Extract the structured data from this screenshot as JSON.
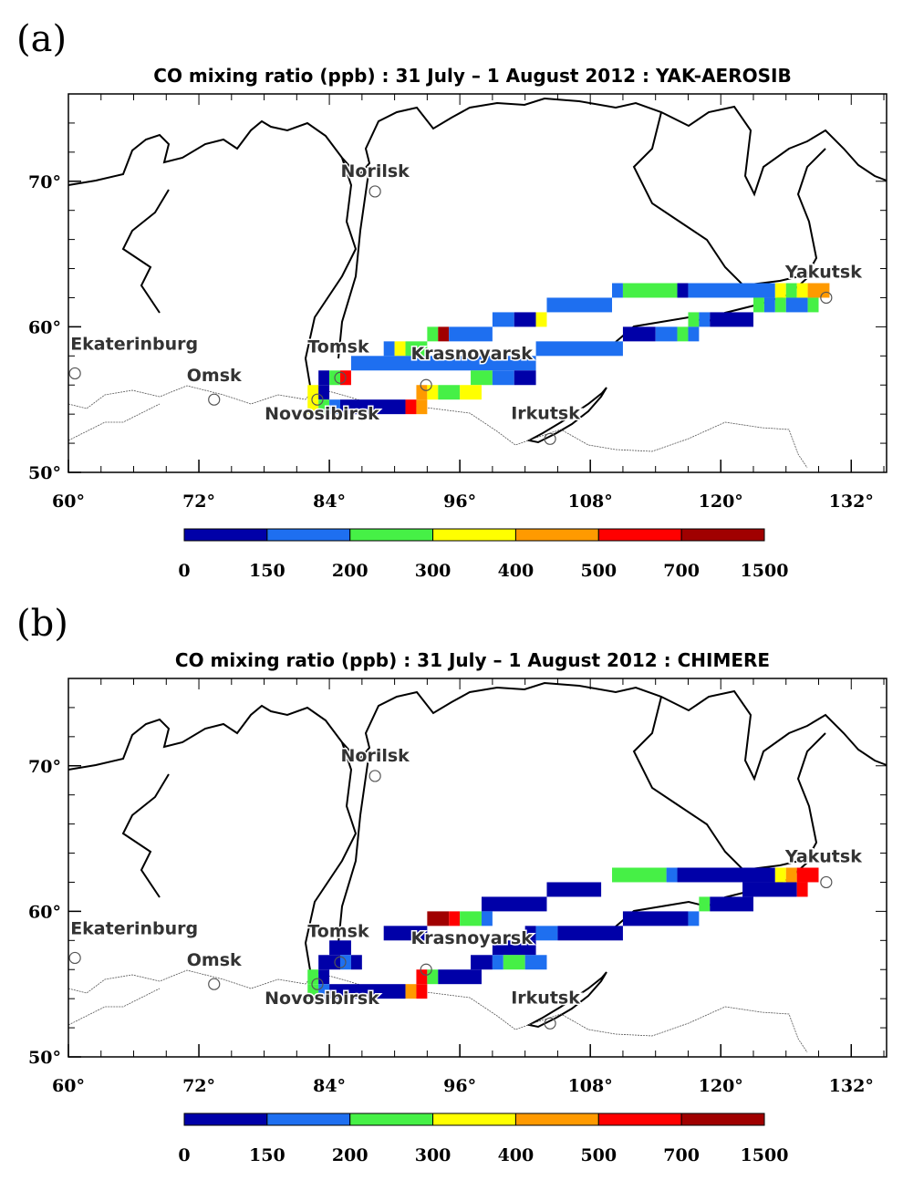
{
  "panels": [
    {
      "label": "(a)",
      "title": "CO mixing ratio (ppb) : 31 July – 1 August 2012 : YAK-AEROSIB",
      "xlim": [
        60,
        135.25
      ],
      "ylim": [
        50,
        76
      ],
      "xticks": [
        {
          "value": 60,
          "label": "60°"
        },
        {
          "value": 72,
          "label": "72°"
        },
        {
          "value": 84,
          "label": "84°"
        },
        {
          "value": 96,
          "label": "96°"
        },
        {
          "value": 108,
          "label": "108°"
        },
        {
          "value": 120,
          "label": "120°"
        },
        {
          "value": 132,
          "label": "132°"
        }
      ],
      "yticks": [
        {
          "value": 50,
          "label": "50°"
        },
        {
          "value": 60,
          "label": "60°"
        },
        {
          "value": 70,
          "label": "70°"
        }
      ],
      "cities": [
        {
          "name": "Norilsk",
          "lon": 88.2,
          "lat": 69.3
        },
        {
          "name": "Ekaterinburg",
          "lon": 60.6,
          "lat": 56.8
        },
        {
          "name": "Omsk",
          "lon": 73.4,
          "lat": 55.0
        },
        {
          "name": "Tomsk",
          "lon": 85.0,
          "lat": 56.5
        },
        {
          "name": "Novosibirsk",
          "lon": 82.9,
          "lat": 55.0
        },
        {
          "name": "Krasnoyarsk",
          "lon": 92.9,
          "lat": 56.0
        },
        {
          "name": "Irkutsk",
          "lon": 104.3,
          "lat": 52.3
        },
        {
          "name": "Yakutsk",
          "lon": 129.7,
          "lat": 62.0
        }
      ],
      "cells": [
        [
          110,
          111,
          62,
          175
        ],
        [
          111,
          116,
          62,
          250
        ],
        [
          116,
          117,
          62,
          120
        ],
        [
          117,
          125,
          62,
          175
        ],
        [
          125,
          126,
          62,
          350
        ],
        [
          126,
          127,
          62,
          250
        ],
        [
          127,
          128,
          62,
          350
        ],
        [
          128,
          130,
          62,
          450
        ],
        [
          104,
          110,
          61,
          175
        ],
        [
          123,
          124,
          61,
          250
        ],
        [
          124,
          125,
          61,
          175
        ],
        [
          125,
          126,
          61,
          250
        ],
        [
          126,
          128,
          61,
          175
        ],
        [
          128,
          129,
          61,
          250
        ],
        [
          99,
          101,
          60,
          175
        ],
        [
          101,
          103,
          60,
          120
        ],
        [
          103,
          104,
          60,
          350
        ],
        [
          117,
          118,
          60,
          250
        ],
        [
          118,
          119,
          60,
          175
        ],
        [
          119,
          123,
          60,
          120
        ],
        [
          93,
          94,
          59,
          250
        ],
        [
          94,
          95,
          59,
          900
        ],
        [
          95,
          99,
          59,
          175
        ],
        [
          111,
          114,
          59,
          120
        ],
        [
          114,
          116,
          59,
          175
        ],
        [
          116,
          117,
          59,
          250
        ],
        [
          117,
          118,
          59,
          175
        ],
        [
          89,
          90,
          58,
          175
        ],
        [
          90,
          91,
          58,
          350
        ],
        [
          91,
          93,
          58,
          250
        ],
        [
          103,
          111,
          58,
          175
        ],
        [
          86,
          103,
          57,
          175
        ],
        [
          83,
          84,
          56,
          120
        ],
        [
          84,
          85,
          56,
          250
        ],
        [
          85,
          86,
          56,
          600
        ],
        [
          97,
          99,
          56,
          250
        ],
        [
          99,
          101,
          56,
          175
        ],
        [
          101,
          103,
          56,
          120
        ],
        [
          82,
          83,
          55,
          350
        ],
        [
          83,
          84,
          55,
          120
        ],
        [
          92,
          93,
          55,
          450
        ],
        [
          93,
          94,
          55,
          350
        ],
        [
          94,
          96,
          55,
          250
        ],
        [
          96,
          98,
          55,
          350
        ],
        [
          82,
          83,
          54,
          350
        ],
        [
          83,
          84,
          54,
          250
        ],
        [
          84,
          85,
          54,
          175
        ],
        [
          85,
          91,
          54,
          120
        ],
        [
          91,
          92,
          54,
          600
        ],
        [
          92,
          93,
          54,
          450
        ]
      ],
      "colorbar": {
        "levels": [
          0,
          150,
          200,
          300,
          400,
          500,
          700,
          1500
        ],
        "colors": [
          "#0000a8",
          "#1e6ff0",
          "#46f046",
          "#ffff00",
          "#ff9a00",
          "#ff0000",
          "#a00000"
        ]
      }
    },
    {
      "label": "(b)",
      "title": "CO mixing ratio (ppb) : 31 July – 1 August 2012 : CHIMERE",
      "xlim": [
        60,
        135.25
      ],
      "ylim": [
        50,
        76
      ],
      "xticks": [
        {
          "value": 60,
          "label": "60°"
        },
        {
          "value": 72,
          "label": "72°"
        },
        {
          "value": 84,
          "label": "84°"
        },
        {
          "value": 96,
          "label": "96°"
        },
        {
          "value": 108,
          "label": "108°"
        },
        {
          "value": 120,
          "label": "120°"
        },
        {
          "value": 132,
          "label": "132°"
        }
      ],
      "yticks": [
        {
          "value": 50,
          "label": "50°"
        },
        {
          "value": 60,
          "label": "60°"
        },
        {
          "value": 70,
          "label": "70°"
        }
      ],
      "cities": [
        {
          "name": "Norilsk",
          "lon": 88.2,
          "lat": 69.3
        },
        {
          "name": "Ekaterinburg",
          "lon": 60.6,
          "lat": 56.8
        },
        {
          "name": "Omsk",
          "lon": 73.4,
          "lat": 55.0
        },
        {
          "name": "Tomsk",
          "lon": 85.0,
          "lat": 56.5
        },
        {
          "name": "Novosibirsk",
          "lon": 82.9,
          "lat": 55.0
        },
        {
          "name": "Krasnoyarsk",
          "lon": 92.9,
          "lat": 56.0
        },
        {
          "name": "Irkutsk",
          "lon": 104.3,
          "lat": 52.3
        },
        {
          "name": "Yakutsk",
          "lon": 129.7,
          "lat": 62.0
        }
      ],
      "cells": [
        [
          110,
          115,
          62,
          250
        ],
        [
          115,
          116,
          62,
          175
        ],
        [
          116,
          125,
          62,
          120
        ],
        [
          125,
          126,
          62,
          350
        ],
        [
          126,
          127,
          62,
          450
        ],
        [
          127,
          129,
          62,
          600
        ],
        [
          104,
          109,
          61,
          120
        ],
        [
          122,
          127,
          61,
          120
        ],
        [
          127,
          128,
          61,
          600
        ],
        [
          98,
          104,
          60,
          120
        ],
        [
          118,
          119,
          60,
          250
        ],
        [
          119,
          123,
          60,
          120
        ],
        [
          93,
          95,
          59,
          900
        ],
        [
          95,
          96,
          59,
          600
        ],
        [
          96,
          98,
          59,
          250
        ],
        [
          98,
          99,
          59,
          175
        ],
        [
          111,
          117,
          59,
          120
        ],
        [
          117,
          118,
          59,
          175
        ],
        [
          89,
          93,
          58,
          120
        ],
        [
          102,
          103,
          58,
          120
        ],
        [
          103,
          105,
          58,
          175
        ],
        [
          105,
          111,
          58,
          120
        ],
        [
          84,
          86,
          57,
          120
        ],
        [
          99,
          103,
          57,
          120
        ],
        [
          83,
          85,
          56,
          120
        ],
        [
          85,
          86,
          56,
          175
        ],
        [
          86,
          87,
          56,
          120
        ],
        [
          97,
          99,
          56,
          120
        ],
        [
          99,
          100,
          56,
          175
        ],
        [
          100,
          102,
          56,
          250
        ],
        [
          102,
          104,
          56,
          175
        ],
        [
          82,
          83,
          55,
          250
        ],
        [
          83,
          84,
          55,
          120
        ],
        [
          92,
          93,
          55,
          600
        ],
        [
          93,
          94,
          55,
          250
        ],
        [
          94,
          98,
          55,
          120
        ],
        [
          82,
          83,
          54,
          250
        ],
        [
          83,
          84,
          54,
          175
        ],
        [
          84,
          91,
          54,
          120
        ],
        [
          91,
          92,
          54,
          450
        ],
        [
          92,
          93,
          54,
          600
        ]
      ],
      "colorbar": {
        "levels": [
          0,
          150,
          200,
          300,
          400,
          500,
          700,
          1500
        ],
        "colors": [
          "#0000a8",
          "#1e6ff0",
          "#46f046",
          "#ffff00",
          "#ff9a00",
          "#ff0000",
          "#a00000"
        ]
      }
    }
  ]
}
